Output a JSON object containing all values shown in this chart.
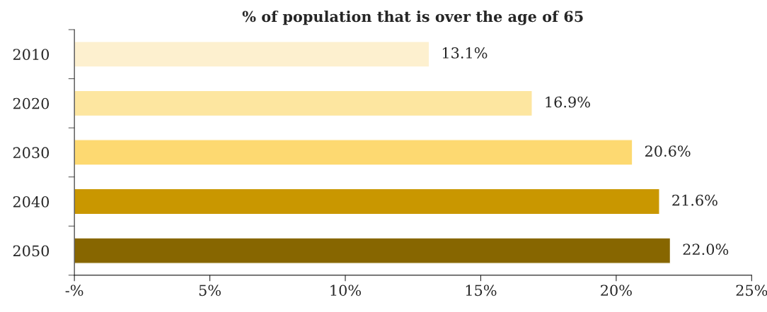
{
  "chart_data": {
    "type": "bar",
    "orientation": "horizontal",
    "title": "% of population that is over the age of 65",
    "categories": [
      "2010",
      "2020",
      "2030",
      "2040",
      "2050"
    ],
    "values": [
      13.1,
      16.9,
      20.6,
      21.6,
      22.0
    ],
    "value_labels": [
      "13.1%",
      "16.9%",
      "20.6%",
      "21.6%",
      "22.0%"
    ],
    "colors": [
      "#fdf0cf",
      "#fde6a0",
      "#fdd971",
      "#c99700",
      "#876600"
    ],
    "xlim": [
      0,
      25
    ],
    "xticks": [
      {
        "value": 0,
        "label": "-%"
      },
      {
        "value": 5,
        "label": "5%"
      },
      {
        "value": 10,
        "label": "10%"
      },
      {
        "value": 15,
        "label": "15%"
      },
      {
        "value": 20,
        "label": "20%"
      },
      {
        "value": 25,
        "label": "25%"
      }
    ],
    "grid": false,
    "legend": false
  }
}
